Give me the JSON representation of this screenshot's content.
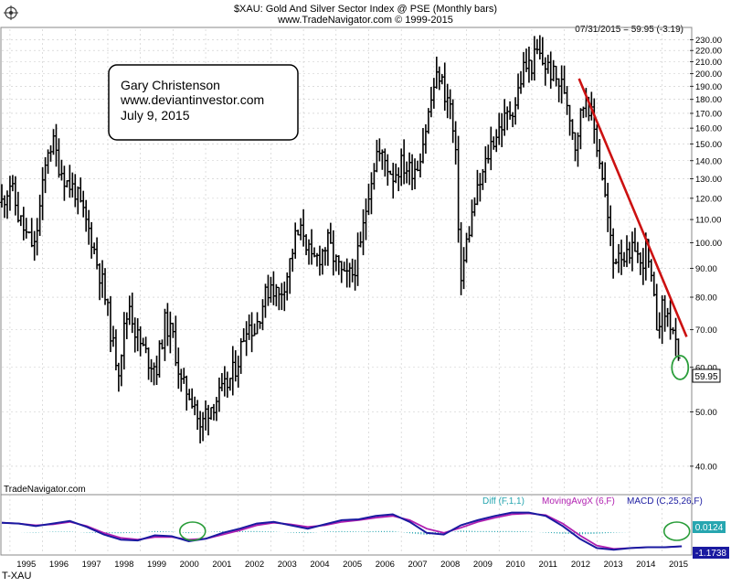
{
  "header": {
    "title": "$XAU:  Gold And Silver Sector Index @ PSE  (Monthly bars)",
    "subtitle": "www.TradeNavigator.com © 1999-2015",
    "last_bar": "07/31/2015 = 59.95 (-3.19)",
    "price_tag": "59.95"
  },
  "annotation": {
    "line1": "Gary Christenson",
    "line2": "www.deviantinvestor.com",
    "line3": "July 9, 2015"
  },
  "footer": {
    "watermark": "TradeNavigator.com",
    "symbol": "T-XAU"
  },
  "indicator": {
    "legend_diff": "Diff (F,1,1)",
    "legend_ma": "MovingAvgX (6,F)",
    "legend_macd": "MACD (C,25,26,F)",
    "value_diff": "0.0124",
    "value_macd": "-1.1738"
  },
  "colors": {
    "bars": "#000000",
    "trendline": "#cc1111",
    "circle": "#2a9d3a",
    "macd": "#1a1aa0",
    "ma": "#b01fb0",
    "diff": "#27a6b0",
    "grid": "#c8c8c8",
    "diff_label": "#27a6b0"
  },
  "chart_data": [
    {
      "type": "bar",
      "chart_style": "OHLC monthly bars",
      "scale": "log",
      "y_axis_position": "right",
      "grid": true,
      "ylim": [
        36,
        240
      ],
      "x_ticks": [
        "1995",
        "1996",
        "1997",
        "1998",
        "1999",
        "2000",
        "2001",
        "2002",
        "2003",
        "2004",
        "2005",
        "2006",
        "2007",
        "2008",
        "2009",
        "2010",
        "2011",
        "2012",
        "2013",
        "2014",
        "2015"
      ],
      "y_ticks": [
        "40.00",
        "50.00",
        "60.00",
        "70.00",
        "80.00",
        "90.00",
        "100.00",
        "110.00",
        "120.00",
        "130.00",
        "140.00",
        "150.00",
        "160.00",
        "170.00",
        "180.00",
        "190.00",
        "200.00",
        "210.00",
        "220.00",
        "230.00"
      ],
      "series": [
        {
          "points": [
            [
              1994.75,
              118
            ],
            [
              1995.0,
              128
            ],
            [
              1995.25,
              112
            ],
            [
              1995.5,
              103
            ],
            [
              1995.75,
              98
            ],
            [
              1996.0,
              125
            ],
            [
              1996.17,
              148
            ],
            [
              1996.33,
              150
            ],
            [
              1996.5,
              138
            ],
            [
              1996.75,
              128
            ],
            [
              1997.0,
              124
            ],
            [
              1997.25,
              112
            ],
            [
              1997.5,
              102
            ],
            [
              1997.67,
              92
            ],
            [
              1997.83,
              85
            ],
            [
              1998.0,
              75
            ],
            [
              1998.17,
              65
            ],
            [
              1998.33,
              60
            ],
            [
              1998.5,
              70
            ],
            [
              1998.67,
              78
            ],
            [
              1998.83,
              70
            ],
            [
              1999.0,
              66
            ],
            [
              1999.25,
              62
            ],
            [
              1999.5,
              60
            ],
            [
              1999.75,
              72
            ],
            [
              2000.0,
              68
            ],
            [
              2000.25,
              56
            ],
            [
              2000.5,
              54
            ],
            [
              2000.67,
              52
            ],
            [
              2000.83,
              46
            ],
            [
              2001.0,
              50
            ],
            [
              2001.25,
              52
            ],
            [
              2001.5,
              54
            ],
            [
              2001.75,
              57
            ],
            [
              2002.0,
              62
            ],
            [
              2002.25,
              72
            ],
            [
              2002.5,
              70
            ],
            [
              2002.75,
              78
            ],
            [
              2003.0,
              85
            ],
            [
              2003.25,
              80
            ],
            [
              2003.5,
              88
            ],
            [
              2003.75,
              102
            ],
            [
              2004.0,
              105
            ],
            [
              2004.25,
              92
            ],
            [
              2004.5,
              95
            ],
            [
              2004.75,
              100
            ],
            [
              2005.0,
              92
            ],
            [
              2005.25,
              86
            ],
            [
              2005.5,
              88
            ],
            [
              2005.75,
              98
            ],
            [
              2006.0,
              125
            ],
            [
              2006.25,
              145
            ],
            [
              2006.5,
              140
            ],
            [
              2006.75,
              132
            ],
            [
              2007.0,
              138
            ],
            [
              2007.25,
              135
            ],
            [
              2007.5,
              138
            ],
            [
              2007.75,
              160
            ],
            [
              2008.0,
              190
            ],
            [
              2008.17,
              200
            ],
            [
              2008.33,
              185
            ],
            [
              2008.5,
              175
            ],
            [
              2008.67,
              140
            ],
            [
              2008.83,
              85
            ],
            [
              2009.0,
              100
            ],
            [
              2009.25,
              118
            ],
            [
              2009.5,
              132
            ],
            [
              2009.75,
              150
            ],
            [
              2010.0,
              160
            ],
            [
              2010.25,
              168
            ],
            [
              2010.5,
              178
            ],
            [
              2010.75,
              205
            ],
            [
              2011.0,
              208
            ],
            [
              2011.17,
              218
            ],
            [
              2011.33,
              210
            ],
            [
              2011.5,
              205
            ],
            [
              2011.75,
              195
            ],
            [
              2012.0,
              188
            ],
            [
              2012.17,
              170
            ],
            [
              2012.33,
              150
            ],
            [
              2012.5,
              168
            ],
            [
              2012.67,
              185
            ],
            [
              2012.83,
              168
            ],
            [
              2013.0,
              150
            ],
            [
              2013.17,
              132
            ],
            [
              2013.33,
              110
            ],
            [
              2013.5,
              92
            ],
            [
              2013.67,
              98
            ],
            [
              2013.83,
              95
            ],
            [
              2014.0,
              92
            ],
            [
              2014.17,
              100
            ],
            [
              2014.33,
              90
            ],
            [
              2014.5,
              98
            ],
            [
              2014.67,
              84
            ],
            [
              2014.83,
              72
            ],
            [
              2015.0,
              76
            ],
            [
              2015.17,
              74
            ],
            [
              2015.33,
              70
            ],
            [
              2015.5,
              60
            ]
          ]
        }
      ],
      "annotations": [
        {
          "type": "trendline",
          "from": [
            2012.45,
            196
          ],
          "to": [
            2015.75,
            68
          ]
        },
        {
          "type": "circle",
          "at": [
            2015.55,
            59.95
          ]
        }
      ]
    },
    {
      "type": "line",
      "x_range": [
        1994.75,
        2015.6
      ],
      "series": [
        {
          "name": "MACD (C,25,26,F)",
          "values": [
            0.9,
            0.8,
            0.5,
            0.8,
            1.1,
            0.4,
            -0.5,
            -1.1,
            -1.2,
            -0.6,
            -0.7,
            -1.3,
            -1.0,
            -0.3,
            0.2,
            0.8,
            1.0,
            0.6,
            0.2,
            0.7,
            1.2,
            1.3,
            1.7,
            1.9,
            1.0,
            -0.3,
            -0.5,
            0.6,
            1.2,
            1.7,
            2.1,
            2.1,
            1.7,
            0.5,
            -1.0,
            -2.1,
            -2.3,
            -2.1,
            -2.0,
            -2.0,
            -1.9
          ]
        },
        {
          "name": "MovingAvgX (6,F)",
          "values": [
            0.9,
            0.8,
            0.6,
            0.7,
            1.0,
            0.5,
            -0.3,
            -0.9,
            -1.1,
            -0.8,
            -0.8,
            -1.1,
            -1.0,
            -0.5,
            0.0,
            0.6,
            0.9,
            0.7,
            0.4,
            0.6,
            1.0,
            1.2,
            1.5,
            1.7,
            1.2,
            0.2,
            -0.3,
            0.3,
            1.0,
            1.5,
            1.9,
            2.0,
            1.8,
            0.8,
            -0.6,
            -1.8,
            -2.2,
            -2.1,
            -2.0,
            -2.0,
            -1.9
          ]
        },
        {
          "name": "Diff (F,1,1)",
          "values": [
            0.0,
            0.0,
            -0.1,
            0.1,
            0.1,
            -0.1,
            -0.2,
            -0.2,
            -0.1,
            0.2,
            0.1,
            -0.2,
            0.0,
            0.2,
            0.2,
            0.2,
            0.1,
            -0.1,
            -0.2,
            0.1,
            0.2,
            0.1,
            0.2,
            0.2,
            -0.2,
            -0.5,
            -0.2,
            0.3,
            0.2,
            0.2,
            0.2,
            0.1,
            -0.1,
            -0.3,
            -0.4,
            -0.3,
            -0.1,
            0.0,
            0.0,
            0.0,
            0.0
          ]
        }
      ],
      "annotations": [
        {
          "type": "circle",
          "at": [
            2000.6,
            0.0
          ]
        },
        {
          "type": "circle",
          "at": [
            2015.45,
            0.0
          ]
        }
      ]
    }
  ]
}
